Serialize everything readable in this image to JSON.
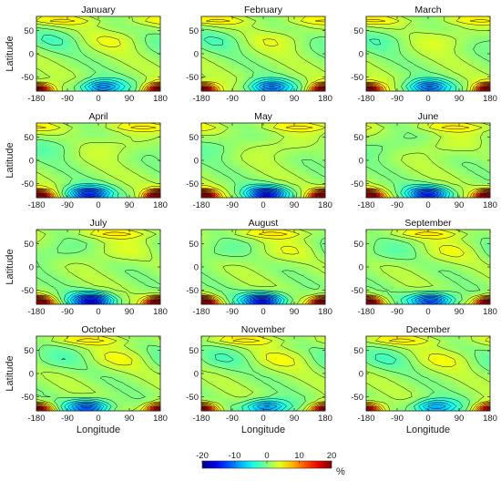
{
  "chart_data": {
    "type": "heatmap",
    "xlabel": "Longitude",
    "ylabel": "Latitude",
    "xlim": [
      -180,
      180
    ],
    "ylim": [
      -80,
      80
    ],
    "x_ticks": [
      "-180",
      "-90",
      "0",
      "90",
      "180"
    ],
    "y_ticks": [
      "50",
      "0",
      "-50"
    ],
    "colorbar": {
      "ticks": [
        "-20",
        "-10",
        "0",
        "10",
        "20"
      ],
      "range": [
        -20,
        20
      ],
      "unit": "%"
    },
    "panels": [
      {
        "title": "January",
        "min_lon": 10,
        "min_val": -13,
        "south_max": 15
      },
      {
        "title": "February",
        "min_lon": 20,
        "min_val": -13,
        "south_max": 15
      },
      {
        "title": "March",
        "min_lon": 0,
        "min_val": -13,
        "south_max": 16
      },
      {
        "title": "April",
        "min_lon": -30,
        "min_val": -17,
        "south_max": 17
      },
      {
        "title": "May",
        "min_lon": 10,
        "min_val": -17,
        "south_max": 17
      },
      {
        "title": "June",
        "min_lon": 0,
        "min_val": -16,
        "south_max": 17
      },
      {
        "title": "July",
        "min_lon": -20,
        "min_val": -18,
        "south_max": 17
      },
      {
        "title": "August",
        "min_lon": 0,
        "min_val": -18,
        "south_max": 17
      },
      {
        "title": "September",
        "min_lon": 10,
        "min_val": -16,
        "south_max": 16
      },
      {
        "title": "October",
        "min_lon": -30,
        "min_val": -15,
        "south_max": 14
      },
      {
        "title": "November",
        "min_lon": 10,
        "min_val": -13,
        "south_max": 14
      },
      {
        "title": "December",
        "min_lon": 20,
        "min_val": -12,
        "south_max": 13
      }
    ]
  }
}
